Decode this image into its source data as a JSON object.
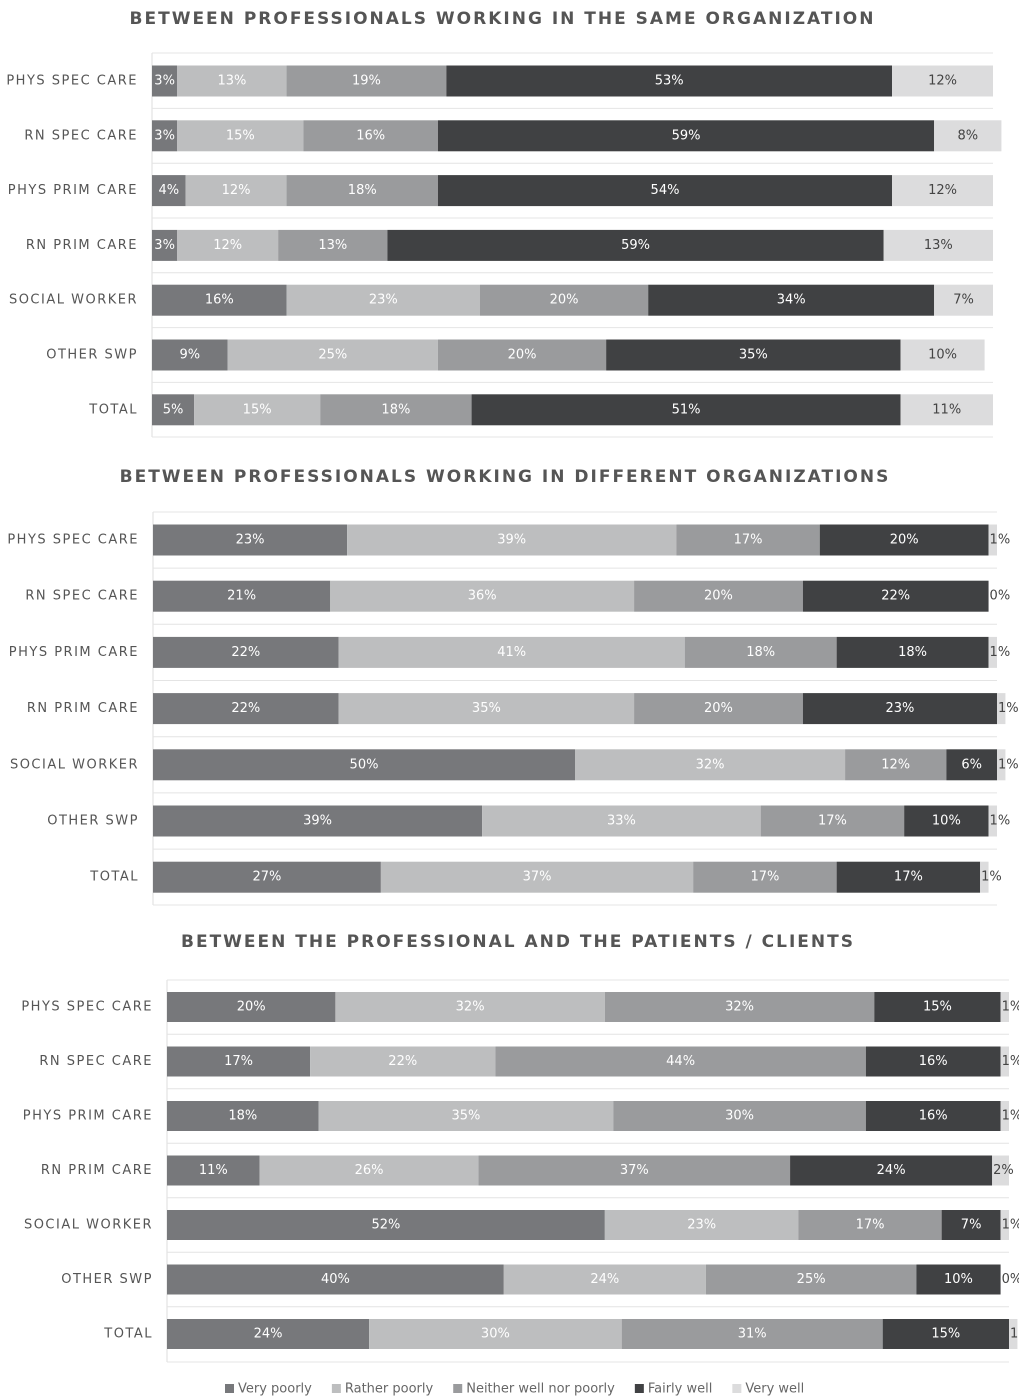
{
  "chart_data": [
    {
      "type": "stacked-bar-horizontal",
      "title": "BETWEEN PROFESSIONALS WORKING IN THE SAME ORGANIZATION",
      "categories": [
        "PHYS SPEC CARE",
        "RN SPEC CARE",
        "PHYS PRIM CARE",
        "RN PRIM CARE",
        "SOCIAL WORKER",
        "OTHER SWP",
        "TOTAL"
      ],
      "xlim": [
        0,
        100
      ],
      "series": [
        {
          "color": "#77787b",
          "values": [
            3,
            3,
            4,
            3,
            16,
            9,
            5
          ],
          "value_labels": [
            "3%",
            "3%",
            "4%",
            "3%",
            "16%",
            "9%",
            "5%"
          ]
        },
        {
          "color": "#bdbebf",
          "values": [
            13,
            15,
            12,
            12,
            23,
            25,
            15
          ],
          "value_labels": [
            "13%",
            "15%",
            "12%",
            "12%",
            "23%",
            "25%",
            "15%"
          ]
        },
        {
          "color": "#9a9b9d",
          "values": [
            19,
            16,
            18,
            13,
            20,
            20,
            18
          ],
          "value_labels": [
            "19%",
            "16%",
            "18%",
            "13%",
            "20%",
            "20%",
            "18%"
          ]
        },
        {
          "color": "#404143",
          "values": [
            53,
            59,
            54,
            59,
            34,
            35,
            51
          ],
          "value_labels": [
            "53%",
            "59%",
            "54%",
            "59%",
            "34%",
            "35%",
            "51%"
          ]
        },
        {
          "color": "#dcdcdd",
          "values": [
            12,
            8,
            12,
            13,
            7,
            10,
            11
          ],
          "value_labels": [
            "12%",
            "8%",
            "12%",
            "13%",
            "7%",
            "10%",
            "11%"
          ]
        }
      ]
    },
    {
      "type": "stacked-bar-horizontal",
      "title": "BETWEEN PROFESSIONALS WORKING IN DIFFERENT ORGANIZATIONS",
      "categories": [
        "PHYS SPEC CARE",
        "RN SPEC CARE",
        "PHYS PRIM CARE",
        "RN PRIM CARE",
        "SOCIAL WORKER",
        "OTHER SWP",
        "TOTAL"
      ],
      "xlim": [
        0,
        100
      ],
      "series": [
        {
          "color": "#77787b",
          "values": [
            23,
            21,
            22,
            22,
            50,
            39,
            27
          ],
          "value_labels": [
            "23%",
            "21%",
            "22%",
            "22%",
            "50%",
            "39%",
            "27%"
          ]
        },
        {
          "color": "#bdbebf",
          "values": [
            39,
            36,
            41,
            35,
            32,
            33,
            37
          ],
          "value_labels": [
            "39%",
            "36%",
            "41%",
            "35%",
            "32%",
            "33%",
            "37%"
          ]
        },
        {
          "color": "#9a9b9d",
          "values": [
            17,
            20,
            18,
            20,
            12,
            17,
            17
          ],
          "value_labels": [
            "17%",
            "20%",
            "18%",
            "20%",
            "12%",
            "17%",
            "17%"
          ]
        },
        {
          "color": "#404143",
          "values": [
            20,
            22,
            18,
            23,
            6,
            10,
            17
          ],
          "value_labels": [
            "20%",
            "22%",
            "18%",
            "23%",
            "6%",
            "10%",
            "17%"
          ]
        },
        {
          "color": "#dcdcdd",
          "values": [
            1,
            0,
            1,
            1,
            1,
            1,
            1
          ],
          "value_labels": [
            "1%",
            "0%",
            "1%",
            "1%",
            "1%",
            "1%",
            "1%"
          ]
        }
      ]
    },
    {
      "type": "stacked-bar-horizontal",
      "title": "BETWEEN THE PROFESSIONAL AND THE PATIENTS / CLIENTS",
      "categories": [
        "PHYS SPEC CARE",
        "RN SPEC CARE",
        "PHYS PRIM CARE",
        "RN PRIM CARE",
        "SOCIAL WORKER",
        "OTHER SWP",
        "TOTAL"
      ],
      "xlim": [
        0,
        100
      ],
      "legend": "bottom",
      "series": [
        {
          "name": "Very poorly",
          "color": "#77787b",
          "values": [
            20,
            17,
            18,
            11,
            52,
            40,
            24
          ],
          "value_labels": [
            "20%",
            "17%",
            "18%",
            "11%",
            "52%",
            "40%",
            "24%"
          ]
        },
        {
          "name": "Rather poorly",
          "color": "#bdbebf",
          "values": [
            32,
            22,
            35,
            26,
            23,
            24,
            30
          ],
          "value_labels": [
            "32%",
            "22%",
            "35%",
            "26%",
            "23%",
            "24%",
            "30%"
          ]
        },
        {
          "name": "Neither well nor poorly",
          "color": "#9a9b9d",
          "values": [
            32,
            44,
            30,
            37,
            17,
            25,
            31
          ],
          "value_labels": [
            "32%",
            "44%",
            "30%",
            "37%",
            "17%",
            "25%",
            "31%"
          ]
        },
        {
          "name": "Fairly well",
          "color": "#404143",
          "values": [
            15,
            16,
            16,
            24,
            7,
            10,
            15
          ],
          "value_labels": [
            "15%",
            "16%",
            "16%",
            "24%",
            "7%",
            "10%",
            "15%"
          ]
        },
        {
          "name": "Very well",
          "color": "#dcdcdd",
          "values": [
            1,
            1,
            1,
            2,
            1,
            0,
            1
          ],
          "value_labels": [
            "1%",
            "1%",
            "1%",
            "2%",
            "1%",
            "0%",
            "1%"
          ]
        }
      ]
    }
  ]
}
